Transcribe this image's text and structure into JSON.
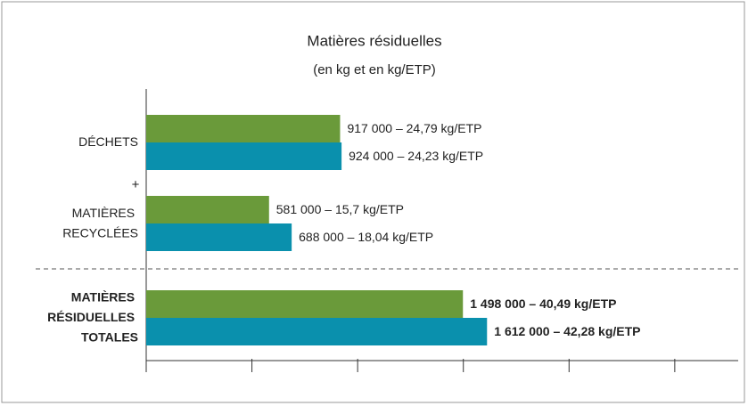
{
  "chart_data": {
    "type": "hbar",
    "title": "Matières résiduelles",
    "subtitle": "(en kg et en kg/ETP)",
    "annotation": "+",
    "categories": [
      "DÉCHETS",
      "MATIÈRES RECYCLÉES",
      "MATIÈRES RÉSIDUELLES TOTALES"
    ],
    "series": [
      {
        "color": "#6a9a3a",
        "values": [
          917000,
          581000,
          1498000
        ],
        "value_labels": [
          "917 000 – 24,79 kg/ETP",
          "581 000 – 15,7 kg/ETP",
          "1 498 000 – 40,49 kg/ETP"
        ]
      },
      {
        "color": "#0a90ad",
        "values": [
          924000,
          688000,
          1612000
        ],
        "value_labels": [
          "924 000 – 24,23 kg/ETP",
          "688 000 – 18,04 kg/ETP",
          "1 612 000 – 42,28 kg/ETP"
        ]
      }
    ],
    "xlim": [
      0,
      2800000
    ],
    "xticks": [
      0,
      500000,
      1000000,
      1500000,
      2000000,
      2500000
    ]
  }
}
